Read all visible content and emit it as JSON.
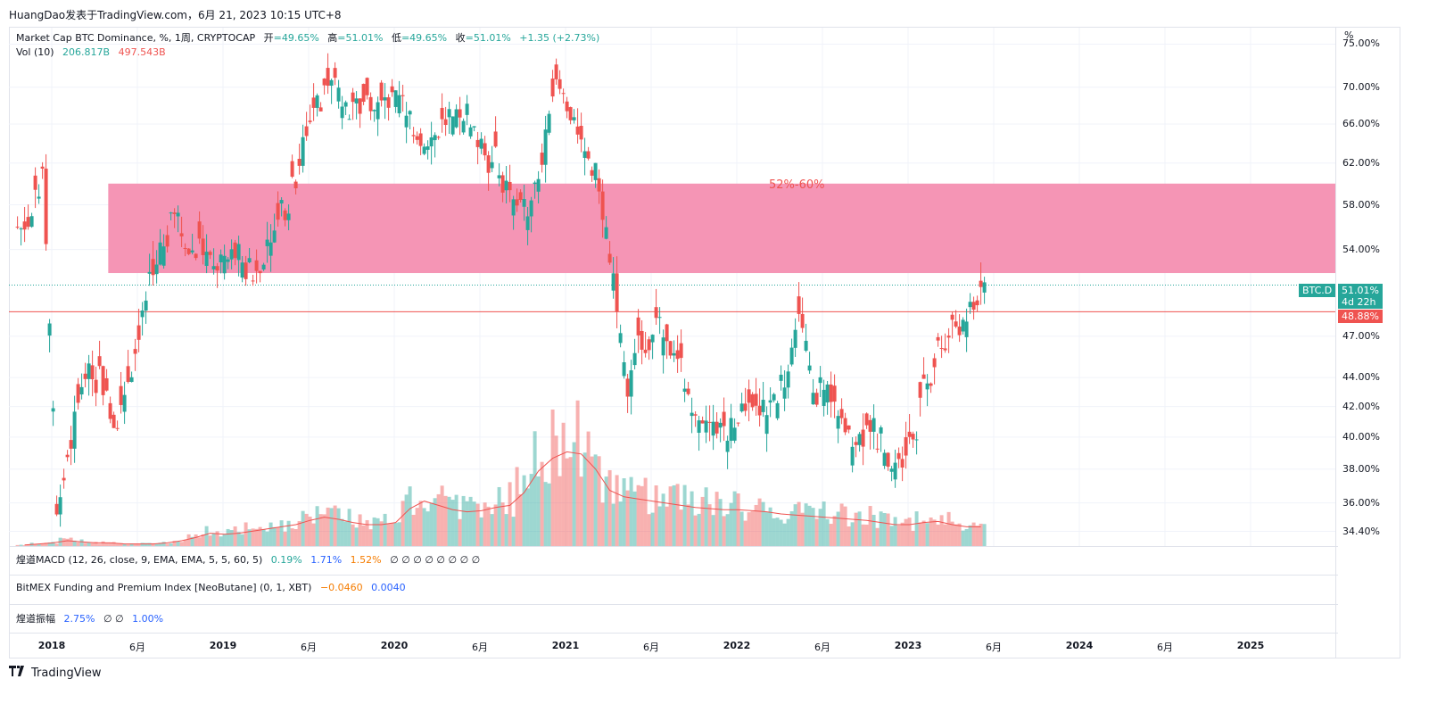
{
  "header": {
    "text": "HuangDao发表于TradingView.com，6月 21, 2023 10:15 UTC+8"
  },
  "legend": {
    "symbol": "Market Cap BTC Dominance, %, 1周, CRYPTOCAP",
    "o_label": "开",
    "o_value": "=49.65%",
    "h_label": "高",
    "h_value": "=51.01%",
    "l_label": "低",
    "l_value": "=49.65%",
    "c_label": "收",
    "c_value": "=51.01%",
    "change": "+1.35 (+2.73%)",
    "vol_label": "Vol (10)",
    "vol_value1": "206.817B",
    "vol_value2": "497.543B"
  },
  "panes": {
    "macd": {
      "label": "煌道MACD (12, 26, close, 9, EMA, EMA, 5, 5, 60, 5)",
      "v1": "0.19%",
      "v2": "1.71%",
      "v3": "1.52%",
      "rest": "∅ ∅ ∅ ∅ ∅ ∅ ∅ ∅"
    },
    "bitmex": {
      "label": "BitMEX Funding and Premium Index [NeoButane] (0, 1, XBT)",
      "v1": "−0.0460",
      "v2": "0.0040"
    },
    "amp": {
      "label": "煌道振幅",
      "v1": "2.75%",
      "rest": "∅ ∅",
      "v2": "1.00%"
    }
  },
  "y_axis": {
    "unit": "%",
    "ticks": [
      "75.00%",
      "70.00%",
      "66.00%",
      "62.00%",
      "58.00%",
      "54.00%",
      "47.00%",
      "44.00%",
      "42.00%",
      "40.00%",
      "38.00%",
      "36.00%",
      "34.40%"
    ]
  },
  "x_axis": {
    "ticks": [
      "2018",
      "6月",
      "2019",
      "6月",
      "2020",
      "6月",
      "2021",
      "6月",
      "2022",
      "6月",
      "2023",
      "6月",
      "2024",
      "6月",
      "2025"
    ]
  },
  "badges": {
    "symbol": "BTC.D",
    "price": "51.01%",
    "countdown": "4d 22h",
    "level": "48.88%"
  },
  "zone": {
    "label": "52%-60%",
    "low": 52,
    "high": 60,
    "color": "#f48fb1"
  },
  "horizontal_line": {
    "value": 48.88,
    "color": "#ef5350"
  },
  "footer": {
    "brand": "TradingView"
  },
  "colors": {
    "up": "#26a69a",
    "down": "#ef5350",
    "ma": "#ef5350"
  },
  "chart_data": {
    "type": "candlestick",
    "title": "Market Cap BTC Dominance, %, 1周, CRYPTOCAP",
    "scale": "log",
    "ylim": [
      33.6,
      77
    ],
    "x": [
      "2017-11",
      "2017-12",
      "2018-01",
      "2018-02",
      "2018-03",
      "2018-04",
      "2018-05",
      "2018-06",
      "2018-07",
      "2018-08",
      "2018-09",
      "2018-10",
      "2018-11",
      "2018-12",
      "2019-01",
      "2019-02",
      "2019-03",
      "2019-04",
      "2019-05",
      "2019-06",
      "2019-07",
      "2019-08",
      "2019-09",
      "2019-10",
      "2019-11",
      "2019-12",
      "2020-01",
      "2020-02",
      "2020-03",
      "2020-04",
      "2020-05",
      "2020-06",
      "2020-07",
      "2020-08",
      "2020-09",
      "2020-10",
      "2020-11",
      "2020-12",
      "2021-01",
      "2021-02",
      "2021-03",
      "2021-04",
      "2021-05",
      "2021-06",
      "2021-07",
      "2021-08",
      "2021-09",
      "2021-10",
      "2021-11",
      "2021-12",
      "2022-01",
      "2022-02",
      "2022-03",
      "2022-04",
      "2022-05",
      "2022-06",
      "2022-07",
      "2022-08",
      "2022-09",
      "2022-10",
      "2022-11",
      "2022-12",
      "2023-01",
      "2023-02",
      "2023-03",
      "2023-04",
      "2023-05",
      "2023-06"
    ],
    "close": [
      56,
      60,
      36,
      40,
      45,
      44,
      40,
      44,
      48,
      53,
      56,
      55,
      54,
      52,
      53,
      54,
      52,
      56,
      58,
      62,
      68,
      70,
      69,
      68,
      67,
      68,
      68,
      66,
      65,
      66,
      66,
      67,
      64,
      62,
      58,
      58,
      62,
      70,
      66,
      62,
      60,
      52,
      43,
      47,
      48,
      45,
      44,
      42,
      42,
      40,
      42,
      43,
      42,
      44,
      48,
      44,
      43,
      42,
      40,
      41,
      40,
      39,
      40,
      44,
      47,
      48,
      48.5,
      51.01
    ],
    "volume_ma_rel": [
      0.01,
      0.02,
      0.03,
      0.05,
      0.04,
      0.03,
      0.03,
      0.02,
      0.02,
      0.02,
      0.03,
      0.05,
      0.08,
      0.12,
      0.11,
      0.12,
      0.14,
      0.16,
      0.18,
      0.2,
      0.24,
      0.27,
      0.25,
      0.22,
      0.2,
      0.2,
      0.22,
      0.35,
      0.42,
      0.38,
      0.34,
      0.32,
      0.33,
      0.36,
      0.38,
      0.5,
      0.7,
      0.82,
      0.88,
      0.86,
      0.72,
      0.52,
      0.46,
      0.44,
      0.42,
      0.4,
      0.38,
      0.36,
      0.35,
      0.34,
      0.34,
      0.33,
      0.32,
      0.3,
      0.29,
      0.28,
      0.27,
      0.26,
      0.25,
      0.24,
      0.22,
      0.2,
      0.2,
      0.22,
      0.23,
      0.2,
      0.18,
      0.18
    ]
  }
}
